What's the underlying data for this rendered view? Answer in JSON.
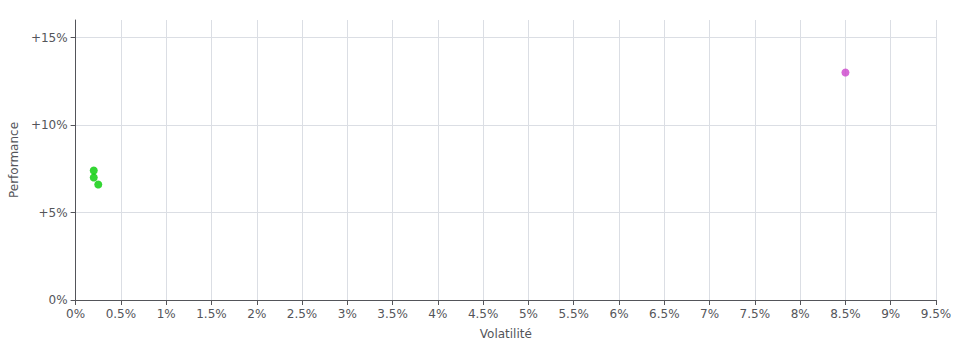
{
  "chart_data": {
    "type": "scatter",
    "xlabel": "Volatilité",
    "ylabel": "Performance",
    "series": [
      {
        "x": [
          0.002,
          0.002,
          0.0025
        ],
        "values": [
          0.074,
          0.07,
          0.066
        ],
        "color": "#00cc00"
      },
      {
        "x": [
          0.085
        ],
        "values": [
          0.13
        ],
        "color": "#cc44cc"
      }
    ],
    "xlim": [
      0,
      0.095
    ],
    "xticks": [
      {
        "value": 0,
        "label": "0%"
      },
      {
        "value": 0.005,
        "label": "0.5%"
      },
      {
        "value": 0.01,
        "label": "1%"
      },
      {
        "value": 0.015,
        "label": "1.5%"
      },
      {
        "value": 0.02,
        "label": "2%"
      },
      {
        "value": 0.025,
        "label": "2.5%"
      },
      {
        "value": 0.03,
        "label": "3%"
      },
      {
        "value": 0.035,
        "label": "3.5%"
      },
      {
        "value": 0.04,
        "label": "4%"
      },
      {
        "value": 0.045,
        "label": "4.5%"
      },
      {
        "value": 0.05,
        "label": "5%"
      },
      {
        "value": 0.055,
        "label": "5.5%"
      },
      {
        "value": 0.06,
        "label": "6%"
      },
      {
        "value": 0.065,
        "label": "6.5%"
      },
      {
        "value": 0.07,
        "label": "7%"
      },
      {
        "value": 0.075,
        "label": "7.5%"
      },
      {
        "value": 0.08,
        "label": "8%"
      },
      {
        "value": 0.085,
        "label": "8.5%"
      },
      {
        "value": 0.09,
        "label": "9%"
      },
      {
        "value": 0.095,
        "label": "9.5%"
      }
    ],
    "ylim": [
      0,
      0.16
    ],
    "yticks": [
      {
        "value": 0,
        "label": "0%"
      },
      {
        "value": 0.05,
        "label": "+5%"
      },
      {
        "value": 0.1,
        "label": "+10%"
      },
      {
        "value": 0.15,
        "label": "+15%"
      }
    ],
    "grid": true
  }
}
